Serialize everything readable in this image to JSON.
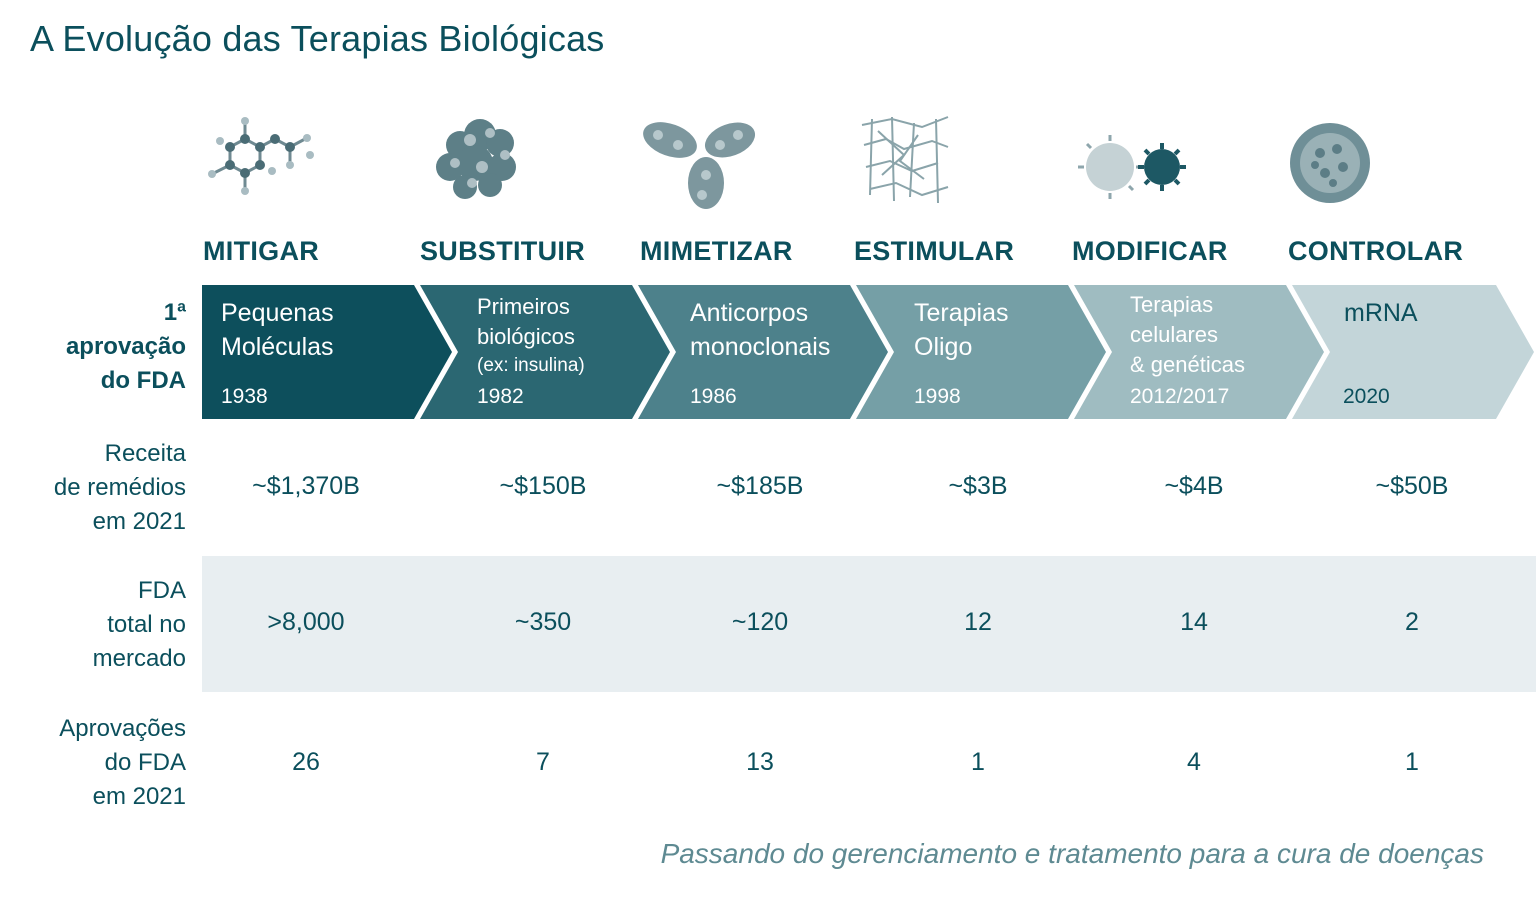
{
  "title": "A Evolução das Terapias Biológicas",
  "row_labels": {
    "approval_line1": "1ª",
    "approval_line2": "aprovação",
    "approval_line3": "do FDA",
    "revenue_line1": "Receita",
    "revenue_line2": "de remédios",
    "revenue_line3": "em 2021",
    "total_line1": "FDA",
    "total_line2": "total no",
    "total_line3": "mercado",
    "approvals_line1": "Aprovações",
    "approvals_line2": "do FDA",
    "approvals_line3": "em 2021"
  },
  "columns": [
    {
      "category": "MITIGAR",
      "icon": "small-molecule-icon",
      "name_line1": "Pequenas",
      "name_line2": "Moléculas",
      "note": "",
      "year": "1938",
      "revenue": "~$1,370B",
      "total": ">8,000",
      "approvals": "26",
      "color": "#0d4f5c"
    },
    {
      "category": "SUBSTITUIR",
      "icon": "protein-icon",
      "name_line1": "Primeiros",
      "name_line2": "biológicos",
      "note": "(ex: insulina)",
      "year": "1982",
      "revenue": "~$150B",
      "total": "~350",
      "approvals": "7",
      "color": "#2b6772"
    },
    {
      "category": "MIMETIZAR",
      "icon": "antibody-icon",
      "name_line1": "Anticorpos",
      "name_line2": "monoclonais",
      "note": "",
      "year": "1986",
      "revenue": "~$185B",
      "total": "~120",
      "approvals": "13",
      "color": "#4d818b"
    },
    {
      "category": "ESTIMULAR",
      "icon": "oligo-icon",
      "name_line1": "Terapias",
      "name_line2": "Oligo",
      "note": "",
      "year": "1998",
      "revenue": "~$3B",
      "total": "12",
      "approvals": "1",
      "color": "#759fa6"
    },
    {
      "category": "MODIFICAR",
      "icon": "cell-gene-icon",
      "name_line1": "Terapias",
      "name_line2": "celulares",
      "name_line3": "& genéticas",
      "note": "",
      "year": "2012/2017",
      "revenue": "~$4B",
      "total": "14",
      "approvals": "4",
      "color": "#9fbcc1"
    },
    {
      "category": "CONTROLAR",
      "icon": "mrna-lipid-nanoparticle-icon",
      "name_line1": "mRNA",
      "name_line2": "",
      "note": "",
      "year": "2020",
      "revenue": "~$50B",
      "total": "2",
      "approvals": "1",
      "color": "#c3d5d9"
    }
  ],
  "footer": "Passando do gerenciamento e tratamento para a cura de doenças"
}
